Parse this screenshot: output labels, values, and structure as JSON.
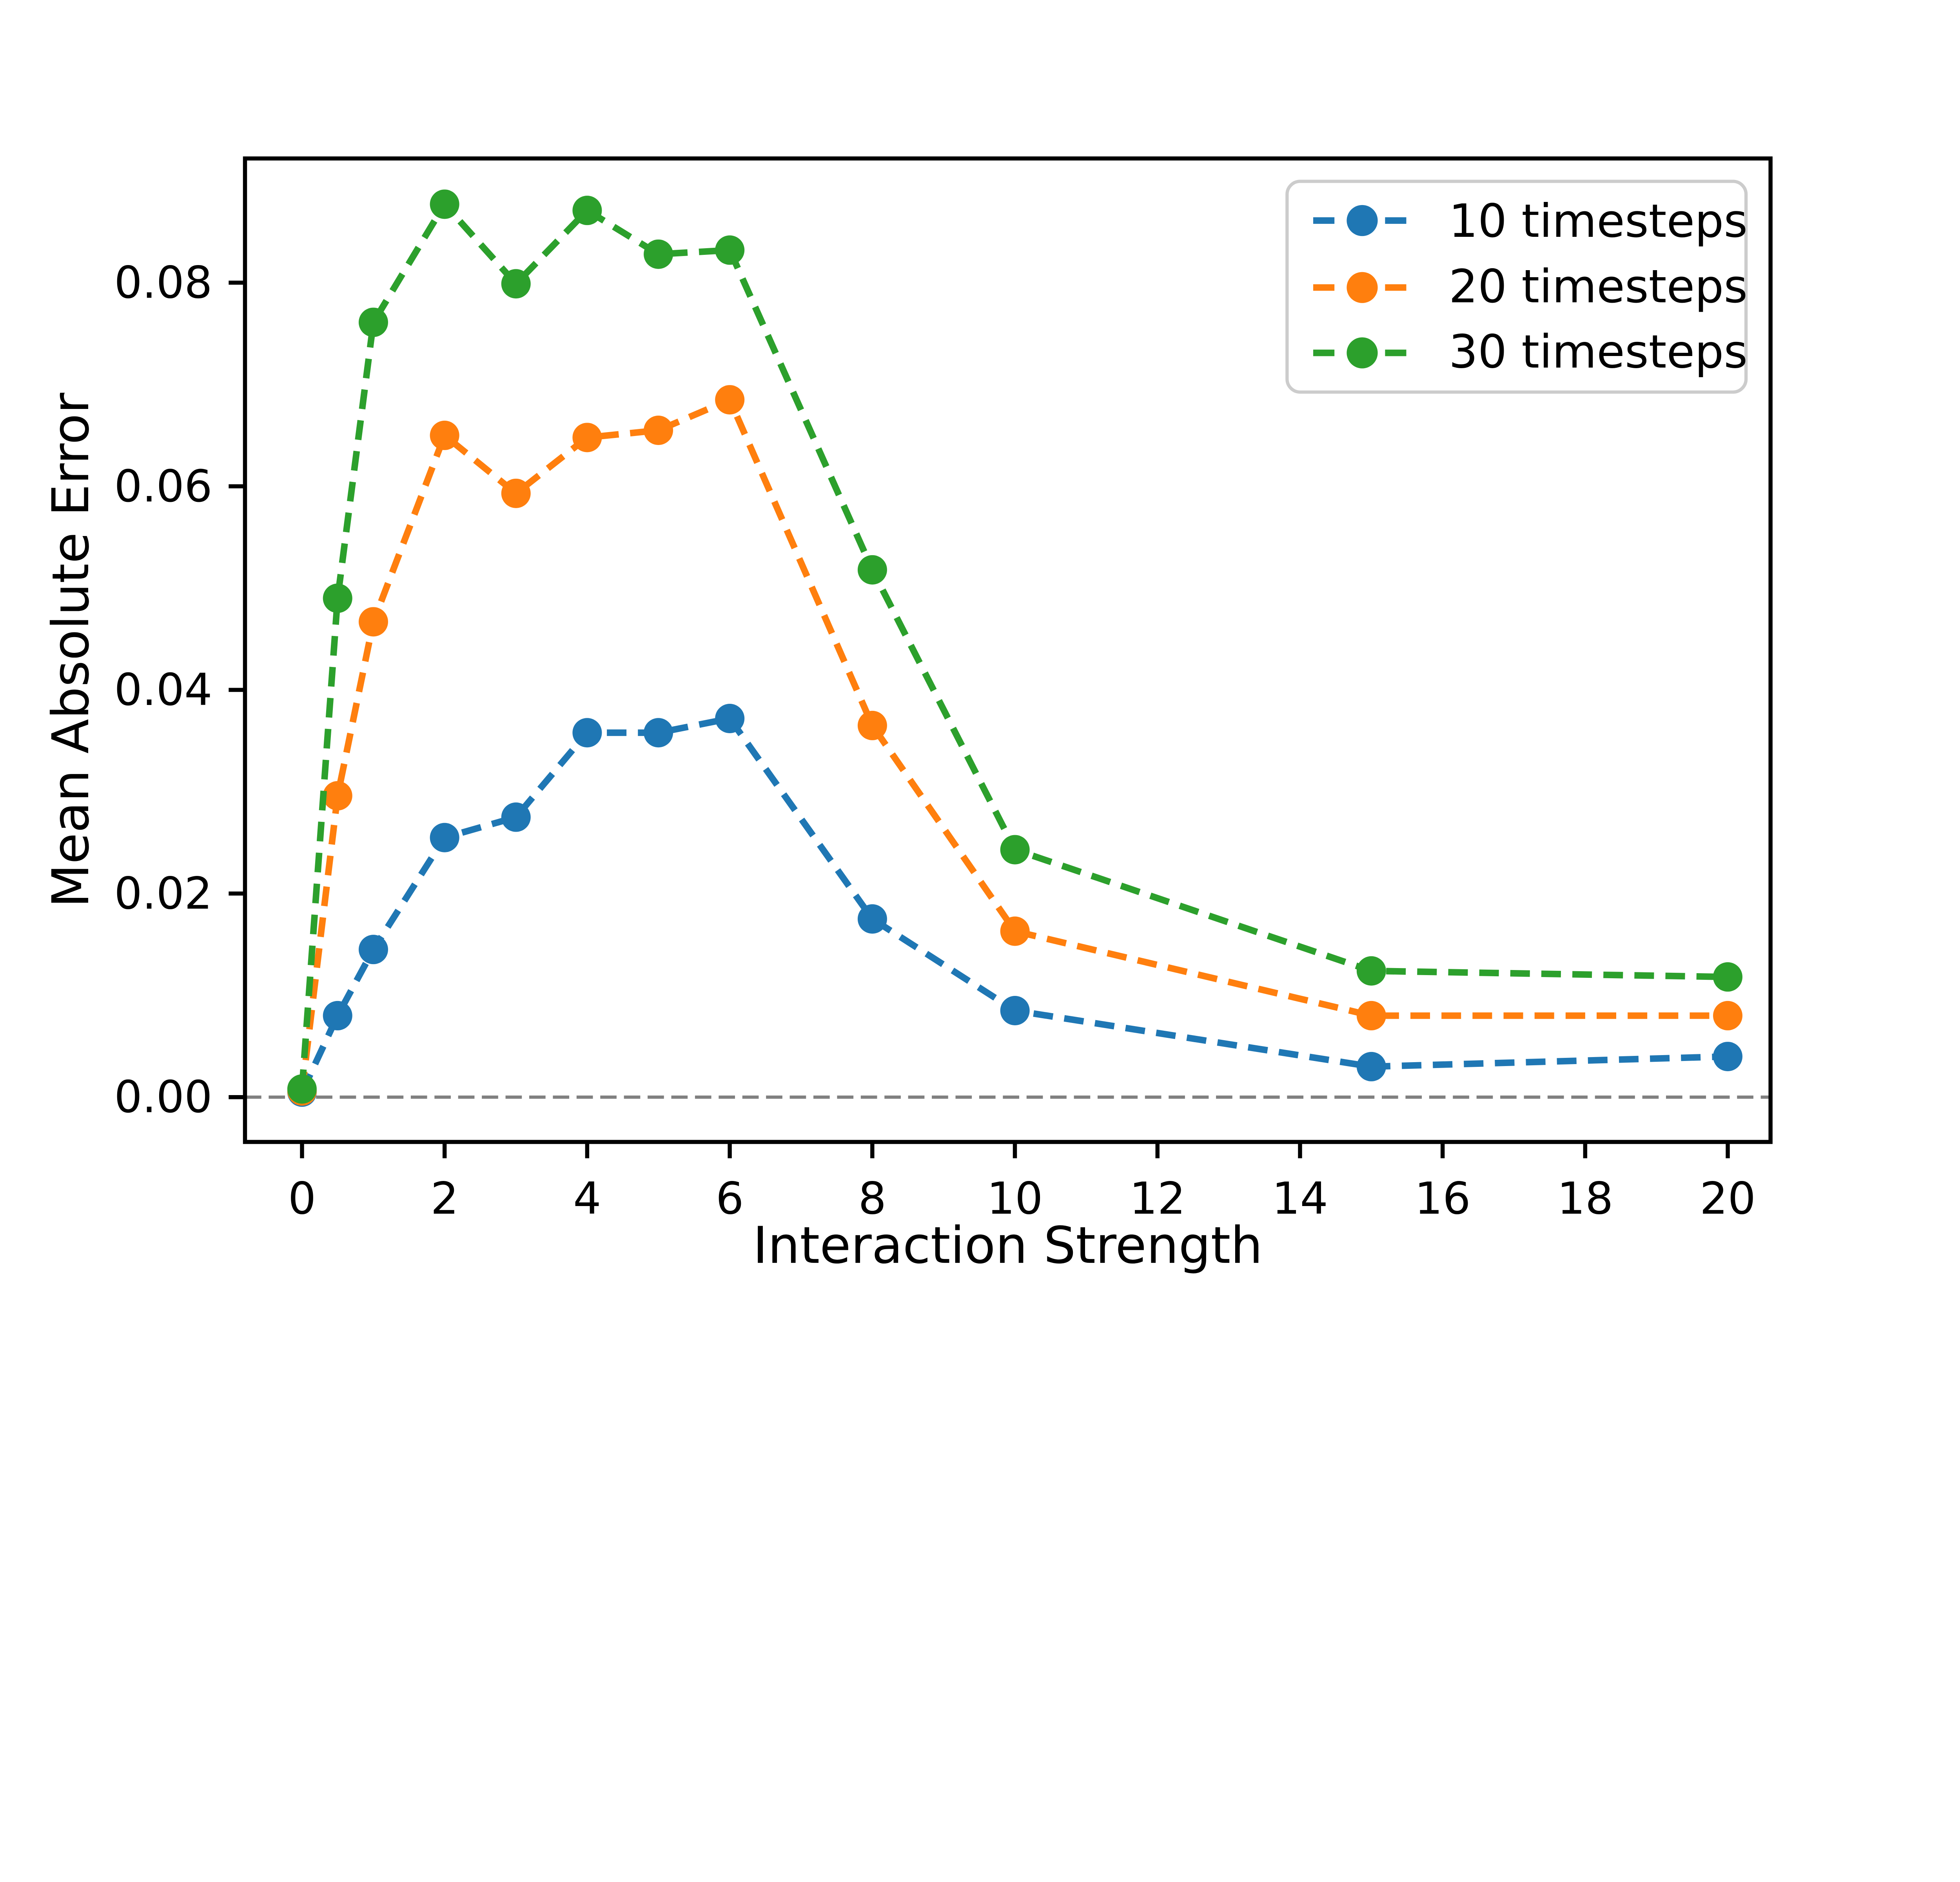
{
  "chart_data": {
    "type": "line",
    "title": "",
    "xlabel": "Interaction Strength",
    "ylabel": "Mean Absolute Error",
    "x": [
      0,
      0.5,
      1,
      2,
      3,
      4,
      5,
      6,
      8,
      10,
      15,
      20
    ],
    "series": [
      {
        "name": "10 timesteps",
        "color": "#1f77b4",
        "values": [
          0.0005,
          0.008,
          0.0145,
          0.0255,
          0.0275,
          0.0358,
          0.0358,
          0.0372,
          0.0175,
          0.0085,
          0.003,
          0.004
        ]
      },
      {
        "name": "20 timesteps",
        "color": "#ff7f0e",
        "values": [
          0.0006,
          0.0296,
          0.0467,
          0.065,
          0.0593,
          0.0648,
          0.0655,
          0.0685,
          0.0365,
          0.0163,
          0.008,
          0.008
        ]
      },
      {
        "name": "30 timesteps",
        "color": "#2ca02c",
        "values": [
          0.0008,
          0.049,
          0.0761,
          0.0877,
          0.0799,
          0.0871,
          0.0828,
          0.0832,
          0.0518,
          0.0243,
          0.0124,
          0.0118
        ]
      }
    ],
    "xticks": [
      0,
      2,
      4,
      6,
      8,
      10,
      12,
      14,
      16,
      18,
      20
    ],
    "xtick_labels": [
      "0",
      "2",
      "4",
      "6",
      "8",
      "10",
      "12",
      "14",
      "16",
      "18",
      "20"
    ],
    "yticks": [
      0.0,
      0.02,
      0.04,
      0.06,
      0.08
    ],
    "ytick_labels": [
      "0.00",
      "0.02",
      "0.04",
      "0.06",
      "0.08"
    ],
    "xlim": [
      -0.8,
      20.6
    ],
    "ylim": [
      -0.0044,
      0.0922
    ],
    "line_style": "dashed",
    "marker": "circle",
    "zero_line": {
      "y": 0.0,
      "color": "#808080",
      "style": "dashed"
    },
    "legend": {
      "position": "upper right",
      "entries": [
        "10 timesteps",
        "20 timesteps",
        "30 timesteps"
      ]
    },
    "grid": false,
    "background": "#ffffff",
    "axis_color": "#000000"
  }
}
